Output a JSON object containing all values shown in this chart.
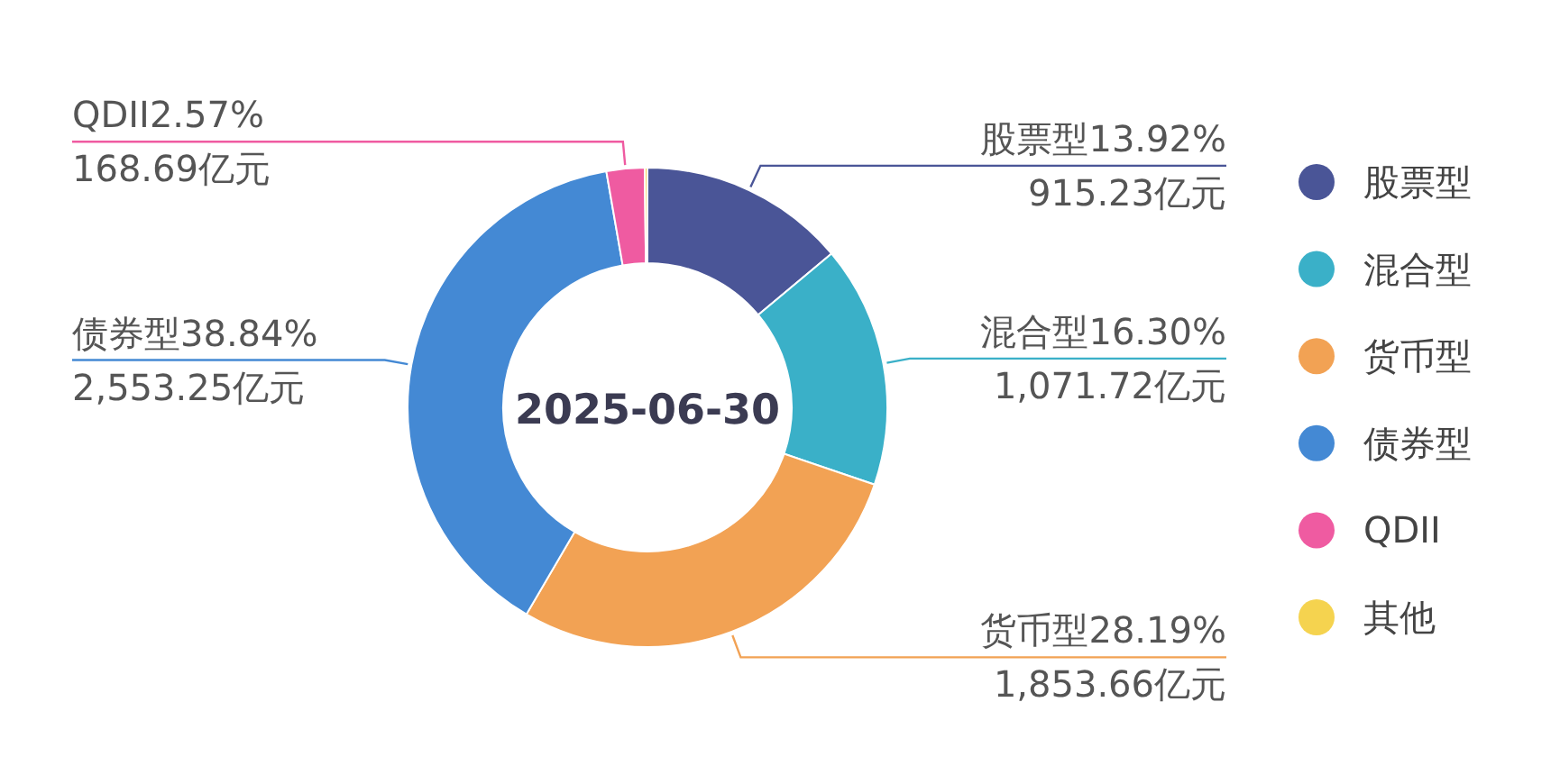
{
  "chart_data": {
    "type": "donut",
    "categories": [
      "股票型",
      "混合型",
      "货币型",
      "债券型",
      "QDII",
      "其他"
    ],
    "values": [
      915.23,
      1071.72,
      1853.66,
      2553.25,
      168.69,
      11.8
    ],
    "colors": [
      "#4a5597",
      "#3ab0c8",
      "#f2a254",
      "#4489d4",
      "#ef5ba1",
      "#f5d34f"
    ],
    "value_labels": [
      "股票型13.92%\n915.23亿元",
      "混合型16.30%\n1,071.72亿元",
      "货币型28.19%\n1,853.66亿元",
      "债券型38.84%\n2,553.25亿元",
      "QDII2.57%\n168.69亿元",
      null
    ],
    "annotations": [
      "2025-06-30"
    ],
    "legend": "right"
  }
}
